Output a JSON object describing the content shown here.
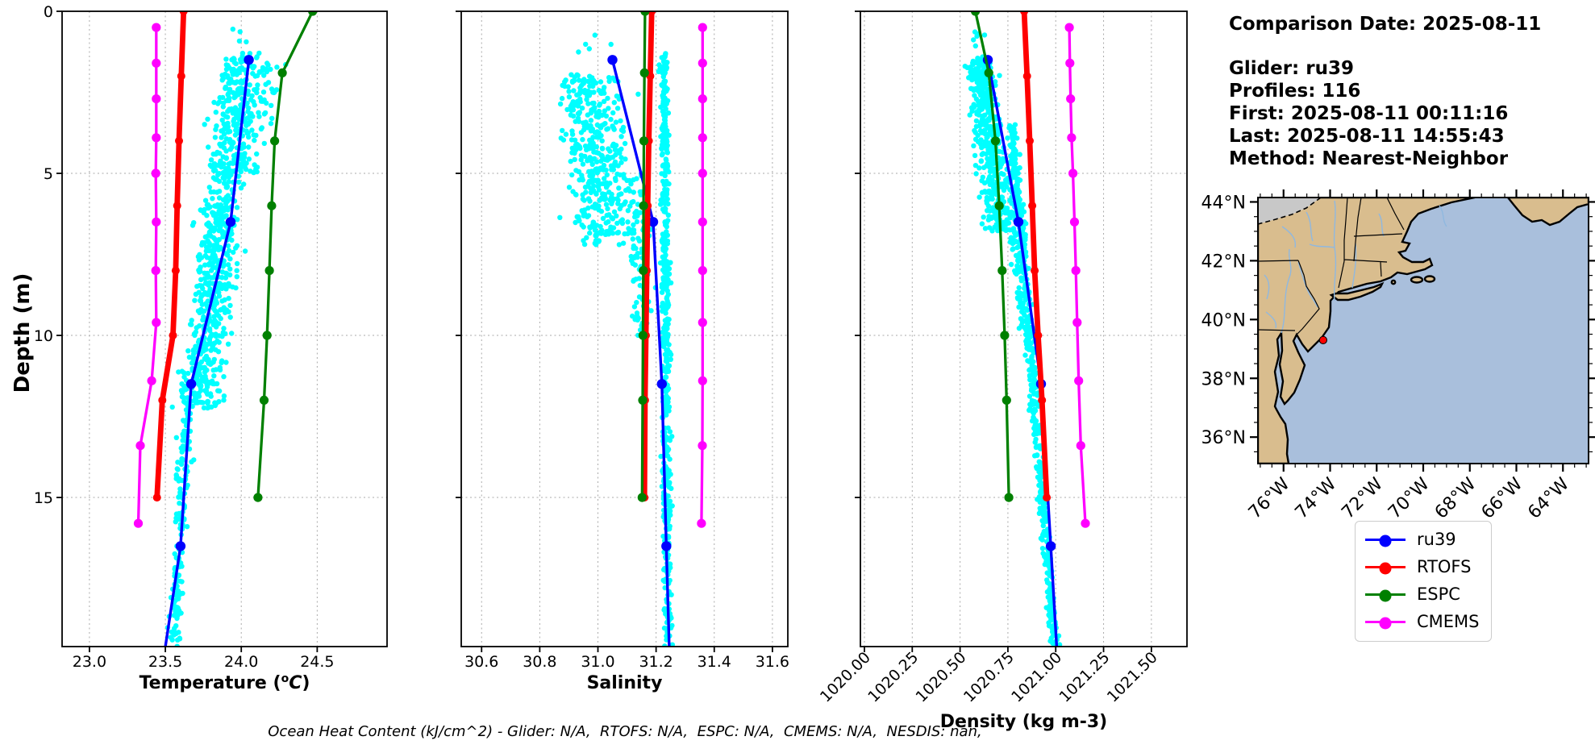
{
  "info": {
    "comparison_date": "Comparison Date: 2025-08-11",
    "glider": "Glider: ru39",
    "profiles": "Profiles: 116",
    "first": "First: 2025-08-11 00:11:16",
    "last": "Last: 2025-08-11 14:55:43",
    "method": "Method: Nearest-Neighbor"
  },
  "legend": {
    "items": [
      {
        "label": "ru39",
        "color": "#0000ff"
      },
      {
        "label": "RTOFS",
        "color": "#ff0000"
      },
      {
        "label": "ESPC",
        "color": "#008000"
      },
      {
        "label": "CMEMS",
        "color": "#ff00ff"
      }
    ]
  },
  "annotation": "Ocean Heat Content (kJ/cm^2) - Glider: N/A,  RTOFS: N/A,  ESPC: N/A,  CMEMS: N/A,  NESDIS: nan,",
  "colors": {
    "scatter": "#00ffff",
    "grid": "#aaaaaa",
    "spine": "#000000",
    "ru39": "#0000ff",
    "rtofs": "#ff0000",
    "espc": "#008000",
    "cmems": "#ff00ff"
  },
  "chart_data": {
    "type": "scatter",
    "depth_axis": {
      "label": "Depth (m)",
      "ticks": [
        0,
        5,
        10,
        15
      ],
      "range": [
        0,
        19.6
      ],
      "inverted": true
    },
    "series_meta": [
      {
        "name": "ru39",
        "color": "#0000ff",
        "width": 3.4,
        "marker_r": 6.2
      },
      {
        "name": "RTOFS",
        "color": "#ff0000",
        "width": 6.8,
        "marker_r": 5.0
      },
      {
        "name": "ESPC",
        "color": "#008000",
        "width": 3.3,
        "marker_r": 5.6
      },
      {
        "name": "CMEMS",
        "color": "#ff00ff",
        "width": 3.3,
        "marker_r": 5.6
      }
    ],
    "panels": [
      {
        "id": "temperature",
        "xlabel_parts": [
          {
            "t": "Temperature ("
          },
          {
            "t": "o",
            "sup": true
          },
          {
            "t": "C",
            "italic": true
          },
          {
            "t": ")"
          }
        ],
        "xlabel": "Temperature (°C)",
        "xlim": [
          22.82,
          24.96
        ],
        "xticks": [
          {
            "v": 23.0,
            "label": "23.0"
          },
          {
            "v": 23.5,
            "label": "23.5"
          },
          {
            "v": 24.0,
            "label": "24.0"
          },
          {
            "v": 24.5,
            "label": "24.5"
          }
        ],
        "rotate_ticks": false,
        "series": [
          {
            "name": "ru39",
            "trail_no_marker": true,
            "points": [
              [
                1.5,
                24.05
              ],
              [
                6.5,
                23.93
              ],
              [
                11.5,
                23.67
              ],
              [
                16.5,
                23.6
              ],
              [
                19.6,
                23.5
              ]
            ]
          },
          {
            "name": "RTOFS",
            "points": [
              [
                0,
                23.62
              ],
              [
                2,
                23.605
              ],
              [
                4,
                23.59
              ],
              [
                6,
                23.578
              ],
              [
                8,
                23.568
              ],
              [
                10,
                23.55
              ],
              [
                12,
                23.48
              ],
              [
                15,
                23.445
              ]
            ]
          },
          {
            "name": "ESPC",
            "points": [
              [
                0,
                24.47
              ],
              [
                1.9,
                24.27
              ],
              [
                4,
                24.22
              ],
              [
                6,
                24.2
              ],
              [
                8,
                24.185
              ],
              [
                10,
                24.17
              ],
              [
                12,
                24.15
              ],
              [
                15,
                24.11
              ]
            ]
          },
          {
            "name": "CMEMS",
            "points": [
              [
                0.5,
                23.44
              ],
              [
                1.6,
                23.44
              ],
              [
                2.7,
                23.44
              ],
              [
                3.9,
                23.44
              ],
              [
                5.0,
                23.437
              ],
              [
                6.5,
                23.44
              ],
              [
                8.0,
                23.437
              ],
              [
                9.6,
                23.44
              ],
              [
                11.4,
                23.41
              ],
              [
                13.4,
                23.335
              ],
              [
                15.8,
                23.322
              ]
            ]
          }
        ],
        "glider_scatter_clusters": [
          {
            "n": 800,
            "d": [
              1.4,
              12.3
            ],
            "c": [
              24.0,
              23.72
            ],
            "s": 0.16
          },
          {
            "n": 70,
            "d": [
              1.6,
              5.0
            ],
            "c": [
              24.18,
              24.05
            ],
            "s": 0.12
          },
          {
            "n": 170,
            "d": [
              12.3,
              19.6
            ],
            "c": [
              23.64,
              23.56
            ],
            "s": 0.05
          },
          {
            "n": 8,
            "d": [
              0.5,
              1.4
            ],
            "c": [
              24.0,
              24.05
            ],
            "s": 0.12
          }
        ]
      },
      {
        "id": "salinity",
        "xlabel_parts": [
          {
            "t": "Salinity"
          }
        ],
        "xlabel": "Salinity",
        "xlim": [
          30.53,
          31.653
        ],
        "xticks": [
          {
            "v": 30.6,
            "label": "30.6"
          },
          {
            "v": 30.8,
            "label": "30.8"
          },
          {
            "v": 31.0,
            "label": "31.0"
          },
          {
            "v": 31.2,
            "label": "31.2"
          },
          {
            "v": 31.4,
            "label": "31.4"
          },
          {
            "v": 31.6,
            "label": "31.6"
          }
        ],
        "rotate_ticks": false,
        "series": [
          {
            "name": "ru39",
            "trail_no_marker": true,
            "points": [
              [
                1.5,
                31.05
              ],
              [
                6.5,
                31.19
              ],
              [
                11.5,
                31.22
              ],
              [
                16.5,
                31.235
              ],
              [
                19.6,
                31.245
              ]
            ]
          },
          {
            "name": "RTOFS",
            "points": [
              [
                0,
                31.185
              ],
              [
                2,
                31.18
              ],
              [
                4,
                31.175
              ],
              [
                6,
                31.171
              ],
              [
                8,
                31.168
              ],
              [
                10,
                31.165
              ],
              [
                12,
                31.162
              ],
              [
                15,
                31.16
              ]
            ]
          },
          {
            "name": "ESPC",
            "points": [
              [
                0,
                31.162
              ],
              [
                1.9,
                31.16
              ],
              [
                4,
                31.158
              ],
              [
                6,
                31.157
              ],
              [
                8,
                31.156
              ],
              [
                10,
                31.155
              ],
              [
                12,
                31.154
              ],
              [
                15,
                31.152
              ]
            ]
          },
          {
            "name": "CMEMS",
            "points": [
              [
                0.5,
                31.36
              ],
              [
                1.6,
                31.36
              ],
              [
                2.7,
                31.36
              ],
              [
                3.9,
                31.36
              ],
              [
                5.0,
                31.36
              ],
              [
                6.5,
                31.36
              ],
              [
                8.0,
                31.36
              ],
              [
                9.6,
                31.36
              ],
              [
                11.4,
                31.36
              ],
              [
                13.4,
                31.359
              ],
              [
                15.8,
                31.356
              ]
            ]
          }
        ],
        "glider_scatter_clusters": [
          {
            "n": 430,
            "d": [
              1.9,
              7.2
            ],
            "c": [
              30.97,
              31.03
            ],
            "s": 0.13
          },
          {
            "n": 90,
            "d": [
              5.0,
              10.0
            ],
            "c": [
              31.12,
              31.16
            ],
            "s": 0.05
          },
          {
            "n": 540,
            "d": [
              1.3,
              19.6
            ],
            "c": [
              31.228,
              31.24
            ],
            "s": 0.018
          },
          {
            "n": 5,
            "d": [
              0.4,
              1.6
            ],
            "c": [
              30.95,
              31.0
            ],
            "s": 0.1
          }
        ]
      },
      {
        "id": "density",
        "xlabel_parts": [
          {
            "t": "Density (kg m-3)"
          }
        ],
        "xlabel": "Density (kg m-3)",
        "xlim": [
          1019.979,
          1021.686
        ],
        "xticks": [
          {
            "v": 1020.0,
            "label": "1020.00"
          },
          {
            "v": 1020.25,
            "label": "1020.25"
          },
          {
            "v": 1020.5,
            "label": "1020.50"
          },
          {
            "v": 1020.75,
            "label": "1020.75"
          },
          {
            "v": 1021.0,
            "label": "1021.00"
          },
          {
            "v": 1021.25,
            "label": "1021.25"
          },
          {
            "v": 1021.5,
            "label": "1021.50"
          }
        ],
        "rotate_ticks": true,
        "series": [
          {
            "name": "ru39",
            "trail_no_marker": true,
            "points": [
              [
                1.5,
                1020.645
              ],
              [
                6.5,
                1020.805
              ],
              [
                11.5,
                1020.923
              ],
              [
                16.5,
                1020.974
              ],
              [
                19.6,
                1021.005
              ]
            ]
          },
          {
            "name": "RTOFS",
            "points": [
              [
                0,
                1020.835
              ],
              [
                2,
                1020.85
              ],
              [
                4,
                1020.864
              ],
              [
                6,
                1020.877
              ],
              [
                8,
                1020.89
              ],
              [
                10,
                1020.908
              ],
              [
                12,
                1020.928
              ],
              [
                15,
                1020.953
              ]
            ]
          },
          {
            "name": "ESPC",
            "points": [
              [
                0,
                1020.58
              ],
              [
                1.9,
                1020.65
              ],
              [
                4,
                1020.685
              ],
              [
                6,
                1020.705
              ],
              [
                8,
                1020.72
              ],
              [
                10,
                1020.733
              ],
              [
                12,
                1020.743
              ],
              [
                15,
                1020.755
              ]
            ]
          },
          {
            "name": "CMEMS",
            "points": [
              [
                0.5,
                1021.071
              ],
              [
                1.6,
                1021.074
              ],
              [
                2.7,
                1021.078
              ],
              [
                3.9,
                1021.083
              ],
              [
                5.0,
                1021.09
              ],
              [
                6.5,
                1021.098
              ],
              [
                8.0,
                1021.105
              ],
              [
                9.6,
                1021.112
              ],
              [
                11.4,
                1021.12
              ],
              [
                13.4,
                1021.131
              ],
              [
                15.8,
                1021.155
              ]
            ]
          }
        ],
        "glider_scatter_clusters": [
          {
            "n": 430,
            "d": [
              1.4,
              6.8
            ],
            "c": [
              1020.6,
              1020.7
            ],
            "s": 0.085
          },
          {
            "n": 90,
            "d": [
              5.0,
              10.0
            ],
            "c": [
              1020.76,
              1020.83
            ],
            "s": 0.04
          },
          {
            "n": 540,
            "d": [
              3.5,
              19.6
            ],
            "c": [
              1020.77,
              1020.995
            ],
            "s": 0.028
          },
          {
            "n": 6,
            "d": [
              0.2,
              1.4
            ],
            "c": [
              1020.55,
              1020.62
            ],
            "s": 0.07
          }
        ]
      }
    ]
  },
  "map": {
    "extent": {
      "lon_w": 77.1,
      "lon_e": 62.9,
      "lat_s": 35.1,
      "lat_n": 44.15
    },
    "lat_ticks": [
      {
        "v": 44,
        "label": "44°N"
      },
      {
        "v": 42,
        "label": "42°N"
      },
      {
        "v": 40,
        "label": "40°N"
      },
      {
        "v": 38,
        "label": "38°N"
      },
      {
        "v": 36,
        "label": "36°N"
      }
    ],
    "lon_ticks": [
      {
        "v": 76,
        "label": "76°W"
      },
      {
        "v": 74,
        "label": "74°W"
      },
      {
        "v": 72,
        "label": "72°W"
      },
      {
        "v": 70,
        "label": "70°W"
      },
      {
        "v": 68,
        "label": "68°W"
      },
      {
        "v": 66,
        "label": "66°W"
      },
      {
        "v": 64,
        "label": "64°W"
      }
    ],
    "minor_step": 0.5,
    "marker": {
      "lon": 74.3,
      "lat": 39.3,
      "color": "#ff0000"
    },
    "colors": {
      "ocean": "#a9bfdc",
      "land": "#d9bd8e",
      "canada": "#c8c8c8",
      "river": "#8fb8e0",
      "coast": "#000000"
    }
  }
}
